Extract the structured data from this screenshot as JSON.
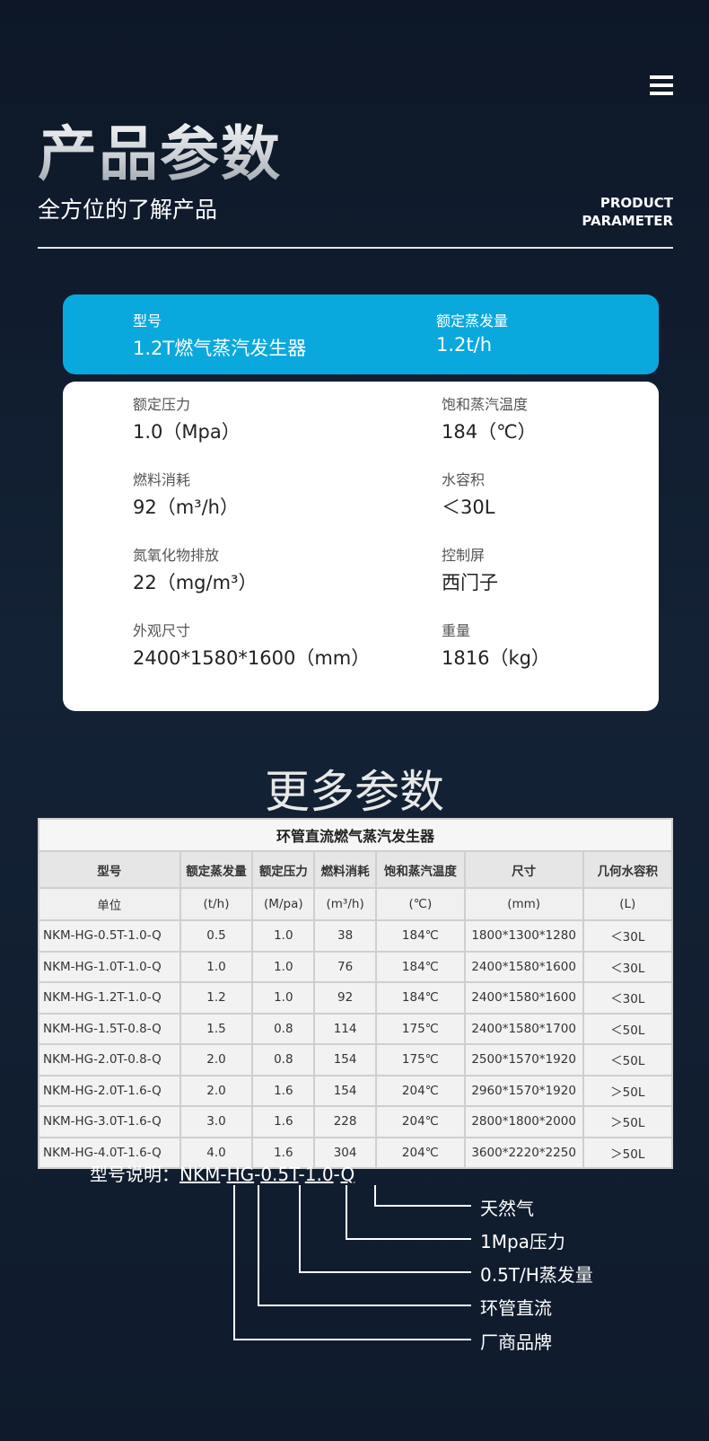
{
  "header": {
    "title": "产品参数",
    "subtitle": "全方位的了解产品",
    "en_line1": "PRODUCT",
    "en_line2": "PARAMETER",
    "menu_icon": "hamburger-menu-icon"
  },
  "highlight": {
    "color": "#0aa9dd",
    "fields": [
      {
        "label": "型号",
        "value": "1.2T燃气蒸汽发生器"
      },
      {
        "label": "额定蒸发量",
        "value": "1.2t/h"
      }
    ]
  },
  "specs": [
    {
      "label": "额定压力",
      "value": "1.0（Mpa）"
    },
    {
      "label": "饱和蒸汽温度",
      "value": "184（℃）"
    },
    {
      "label": "燃料消耗",
      "value": "92（m³/h）"
    },
    {
      "label": "水容积",
      "value": "＜30L"
    },
    {
      "label": "氮氧化物排放",
      "value": "22（mg/m³）"
    },
    {
      "label": "控制屏",
      "value": "西门子"
    },
    {
      "label": "外观尺寸",
      "value": "2400*1580*1600（mm）"
    },
    {
      "label": "重量",
      "value": "1816（kg）"
    }
  ],
  "more_title": "更多参数",
  "table": {
    "caption": "环管直流燃气蒸汽发生器",
    "headers": [
      "型号",
      "额定蒸发量",
      "额定压力",
      "燃料消耗",
      "饱和蒸汽温度",
      "尺寸",
      "几何水容积"
    ],
    "units": [
      "单位",
      "(t/h)",
      "(M/pa)",
      "(m³/h)",
      "(℃)",
      "(mm)",
      "(L)"
    ],
    "rows": [
      [
        "NKM-HG-0.5T-1.0-Q",
        "0.5",
        "1.0",
        "38",
        "184℃",
        "1800*1300*1280",
        "＜30L"
      ],
      [
        "NKM-HG-1.0T-1.0-Q",
        "1.0",
        "1.0",
        "76",
        "184℃",
        "2400*1580*1600",
        "＜30L"
      ],
      [
        "NKM-HG-1.2T-1.0-Q",
        "1.2",
        "1.0",
        "92",
        "184℃",
        "2400*1580*1600",
        "＜30L"
      ],
      [
        "NKM-HG-1.5T-0.8-Q",
        "1.5",
        "0.8",
        "114",
        "175℃",
        "2400*1580*1700",
        "＜50L"
      ],
      [
        "NKM-HG-2.0T-0.8-Q",
        "2.0",
        "0.8",
        "154",
        "175℃",
        "2500*1570*1920",
        "＜50L"
      ],
      [
        "NKM-HG-2.0T-1.6-Q",
        "2.0",
        "1.6",
        "154",
        "204℃",
        "2960*1570*1920",
        "＞50L"
      ],
      [
        "NKM-HG-3.0T-1.6-Q",
        "3.0",
        "1.6",
        "228",
        "204℃",
        "2800*1800*2000",
        "＞50L"
      ],
      [
        "NKM-HG-4.0T-1.6-Q",
        "4.0",
        "1.6",
        "304",
        "204℃",
        "3600*2220*2250",
        "＞50L"
      ]
    ]
  },
  "model_explain": {
    "prefix": "型号说明：",
    "parts": [
      "NKM",
      "HG",
      "0.5T",
      "1.0",
      "Q"
    ],
    "separator": "-",
    "meanings": [
      "天然气",
      "1Mpa压力",
      "0.5T/H蒸发量",
      "环管直流",
      "厂商品牌"
    ]
  }
}
